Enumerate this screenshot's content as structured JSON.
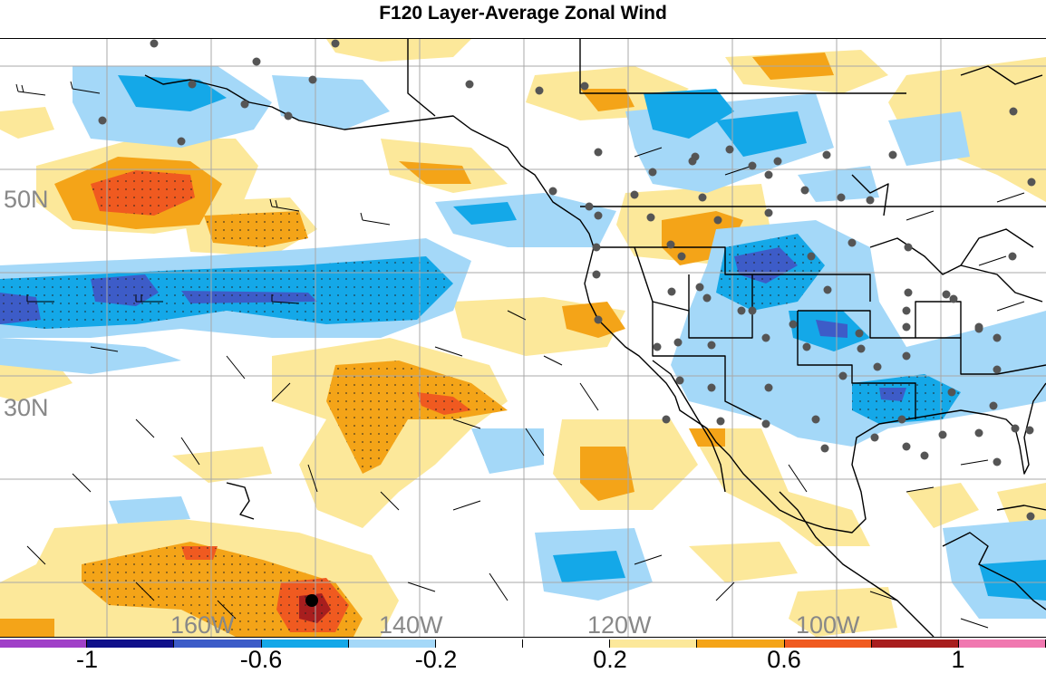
{
  "title": "F120 Layer-Average Zonal Wind",
  "map": {
    "lat_labels": [
      "50N",
      "30N"
    ],
    "lon_labels": [
      "160W",
      "140W",
      "120W",
      "100W"
    ],
    "grid_color": "#a8a8a8",
    "coast_color": "#000000",
    "station_color": "#555555",
    "center_marker_color": "#000000"
  },
  "colorbar": {
    "colors": [
      "#a040c8",
      "#10108a",
      "#3d5cc8",
      "#14a8e8",
      "#a4d8f8",
      "#ffffff",
      "#ffffff",
      "#fce89a",
      "#f4a418",
      "#f05a20",
      "#a81e1e",
      "#f078b0"
    ],
    "labels": [
      "-1",
      "-0.6",
      "-0.2",
      "0.2",
      "0.6",
      "1"
    ]
  }
}
